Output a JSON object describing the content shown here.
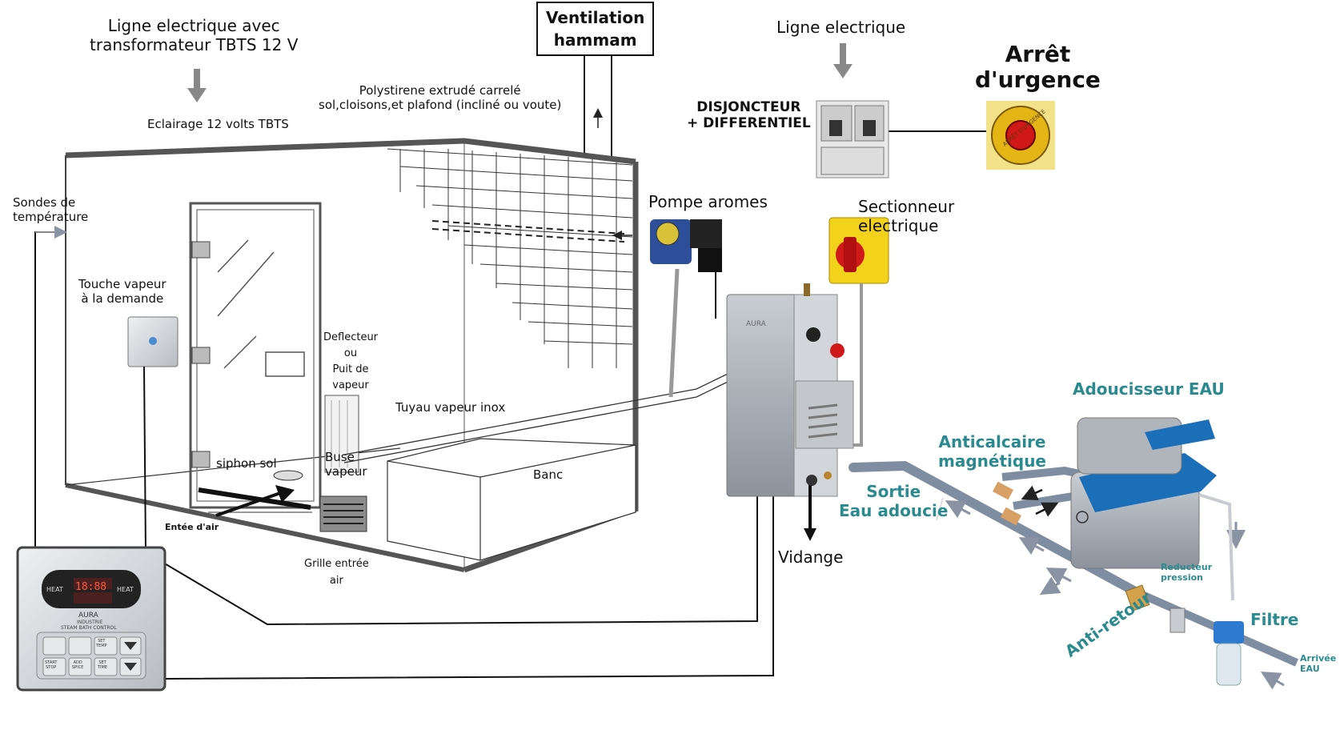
{
  "labels": {
    "ligne_tbts": "Ligne electrique avec\ntransformateur TBTS 12 V",
    "ventilation": "Ventilation\nhammam",
    "ligne_electrique": "Ligne electrique",
    "arret_urgence": "Arrêt\nd'urgence",
    "polystirene": "Polystirene extrudé carrelé\nsol,cloisons,et plafond (incliné ou voute)",
    "eclairage": "Eclairage 12 volts TBTS",
    "disjoncteur": "DISJONCTEUR\n+ DIFFERENTIEL",
    "sondes": "Sondes de\ntempérature",
    "pompe_aromes": "Pompe aromes",
    "sectionneur": "Sectionneur\nelectrique",
    "touche_vapeur": "Touche vapeur\nà la demande",
    "deflecteur": "Deflecteur\nou\nPuit de\nvapeur",
    "tuyau_vapeur": "Tuyau vapeur inox",
    "siphon_sol": "siphon sol",
    "buse_vapeur": "Buse\nvapeur",
    "banc": "Banc",
    "entree_air": "Entée d'air",
    "grille_entree": "Grille entrée\nair",
    "vidange": "Vidange",
    "adoucisseur": "Adoucisseur EAU",
    "anticalcaire": "Anticalcaire\nmagnétique",
    "sortie_eau": "Sortie\nEau adoucie",
    "reducteur": "Reducteur\npression",
    "filtre": "Filtre",
    "anti_retour": "Anti-retour",
    "arrivee_eau": "Arrivée\nEAU"
  },
  "device_text": {
    "arret_badge": "ARRÊT D'URGENCE",
    "controller_brand": "AURA",
    "controller_sub": "INDUSTRIE",
    "controller_model": "STEAM BATH CONTROL",
    "heat_left": "HEAT",
    "heat_right": "HEAT",
    "display_digits": "18:88",
    "btn_set_temp": "SET\nTEMP",
    "btn_start_stop": "START\nSTOP",
    "btn_add_spice": "ADD\nSPICE",
    "btn_set_time": "SET\nTIME",
    "generator_brand": "AURA"
  },
  "colors": {
    "teal_label": "#2a8a8f",
    "red_button": "#d01818",
    "yellow_panel": "#f3d21c",
    "generator": "#d8dadc",
    "softener_blue": "#1a6fb8",
    "pipe": "#7f8da3"
  }
}
